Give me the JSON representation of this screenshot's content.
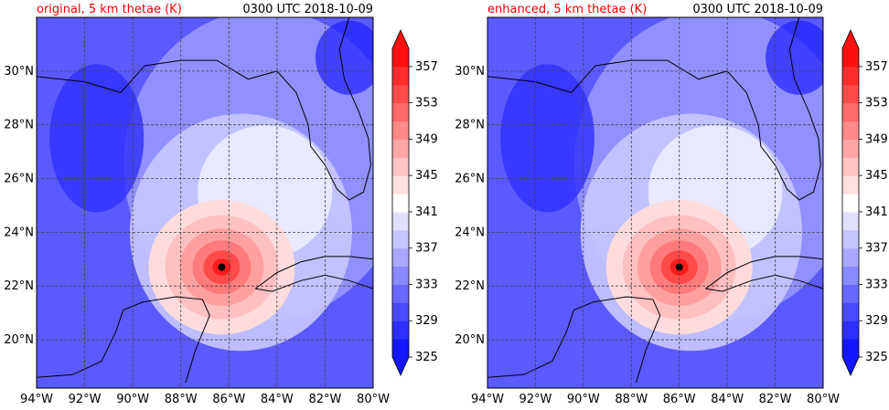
{
  "chart_data": [
    {
      "type": "heatmap",
      "title_left": "original, 5 km thetae (K)",
      "title_right": "0300 UTC 2018-10-09",
      "x_ticks": [
        "94°W",
        "92°W",
        "90°W",
        "88°W",
        "86°W",
        "84°W",
        "82°W",
        "80°W"
      ],
      "y_ticks": [
        "20°N",
        "22°N",
        "24°N",
        "26°N",
        "28°N",
        "30°N"
      ],
      "xlim": [
        -94,
        -80
      ],
      "ylim": [
        18.2,
        32.0
      ],
      "grid": true,
      "colorbar": {
        "ticks": [
          "325",
          "329",
          "333",
          "337",
          "341",
          "345",
          "349",
          "353",
          "357"
        ],
        "range": [
          325,
          359
        ]
      },
      "storm_center": {
        "lon": -86.3,
        "lat": 22.7
      },
      "storm_core_max": 357
    },
    {
      "type": "heatmap",
      "title_left": "enhanced, 5 km thetae (K)",
      "title_right": "0300 UTC 2018-10-09",
      "x_ticks": [
        "94°W",
        "92°W",
        "90°W",
        "88°W",
        "86°W",
        "84°W",
        "82°W",
        "80°W"
      ],
      "y_ticks": [
        "20°N",
        "22°N",
        "24°N",
        "26°N",
        "28°N",
        "30°N"
      ],
      "xlim": [
        -94,
        -80
      ],
      "ylim": [
        18.2,
        32.0
      ],
      "grid": true,
      "colorbar": {
        "ticks": [
          "325",
          "329",
          "333",
          "337",
          "341",
          "345",
          "349",
          "353",
          "357"
        ],
        "range": [
          325,
          359
        ]
      },
      "storm_center": {
        "lon": -86.0,
        "lat": 22.7
      },
      "storm_core_max": 359
    }
  ],
  "colors": {
    "title_left": "#ff0000",
    "low": "#1010ff",
    "mid": "#ffffff",
    "high": "#ff0000"
  }
}
